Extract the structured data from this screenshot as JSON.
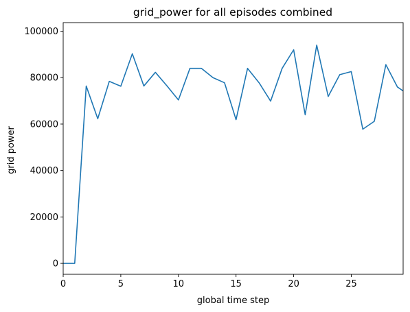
{
  "chart_data": {
    "type": "line",
    "title": "grid_power for all episodes combined",
    "xlabel": "global time step",
    "ylabel": "grid power",
    "xlim": [
      0,
      29.5
    ],
    "ylim": [
      -4700,
      103700
    ],
    "xticks": [
      0,
      5,
      10,
      15,
      20,
      25
    ],
    "yticks": [
      0,
      20000,
      40000,
      60000,
      80000,
      100000
    ],
    "grid": false,
    "line_color": "#1f77b4",
    "series": [
      {
        "x": [
          0,
          1,
          2,
          3,
          4,
          5,
          6,
          7,
          8,
          9,
          10,
          11,
          12,
          13,
          14,
          15,
          16,
          17,
          18,
          19,
          20,
          21,
          22,
          23,
          24,
          25,
          26,
          27,
          28,
          29,
          29.5
        ],
        "values": [
          0,
          0,
          76400,
          62300,
          78400,
          76300,
          90300,
          76400,
          82300,
          76500,
          70400,
          84000,
          84000,
          80000,
          77800,
          61900,
          84000,
          77800,
          69900,
          84000,
          92000,
          64000,
          94000,
          71900,
          81300,
          82600,
          57800,
          61200,
          85600,
          76000,
          74300
        ]
      }
    ]
  }
}
